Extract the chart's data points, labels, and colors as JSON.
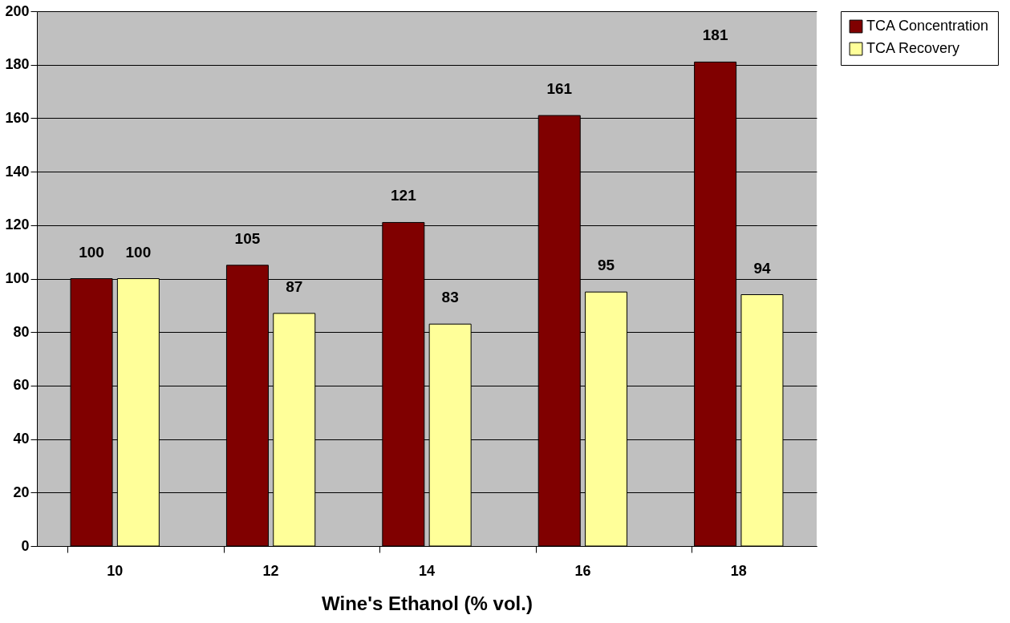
{
  "chart_data": {
    "type": "bar",
    "xlabel": "Wine's Ethanol (% vol.)",
    "categories": [
      "10",
      "12",
      "14",
      "16",
      "18"
    ],
    "series": [
      {
        "name": "TCA Concentration",
        "color": "#800000",
        "values": [
          100,
          105,
          121,
          161,
          181
        ]
      },
      {
        "name": "TCA Recovery",
        "color": "#ffff99",
        "values": [
          100,
          87,
          83,
          95,
          94
        ]
      }
    ],
    "ylim": [
      0,
      200
    ],
    "yticks": [
      0,
      20,
      40,
      60,
      80,
      100,
      120,
      140,
      160,
      180,
      200
    ],
    "grid": "y",
    "legend": "right",
    "data_labels": true
  }
}
